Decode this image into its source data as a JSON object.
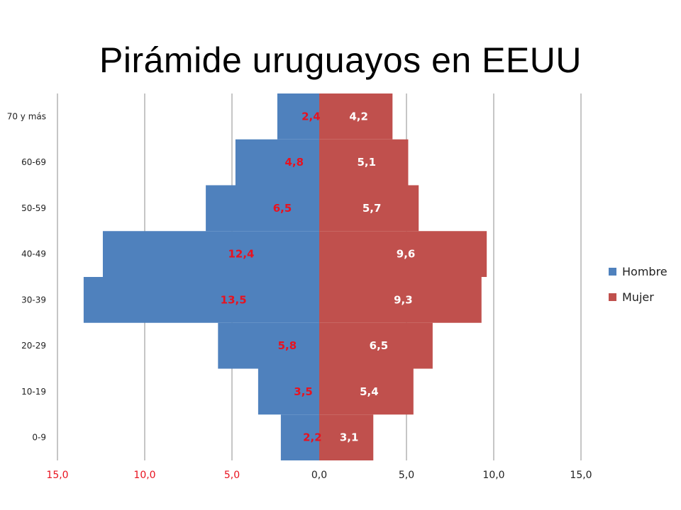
{
  "title": "Pirámide uruguayos en EEUU",
  "colors": {
    "hombre": "#4f81bd",
    "mujer": "#c0504d",
    "hombre_label": "#e8121f",
    "mujer_label": "#ffffff",
    "x_tick_left": "#e8121f",
    "x_tick_right": "#222222",
    "grid": "#8c8c8c"
  },
  "chart_data": {
    "type": "bar",
    "orientation": "horizontal-pyramid",
    "title": "Pirámide uruguayos en EEUU",
    "categories": [
      "0-9",
      "10-19",
      "20-29",
      "30-39",
      "40-49",
      "50-59",
      "60-69",
      "70 y más"
    ],
    "series": [
      {
        "name": "Hombre",
        "values": [
          2.2,
          3.5,
          5.8,
          13.5,
          12.4,
          6.5,
          4.8,
          2.4
        ],
        "labels": [
          "2,2",
          "3,5",
          "5,8",
          "13,5",
          "12,4",
          "6,5",
          "4,8",
          "2,4"
        ]
      },
      {
        "name": "Mujer",
        "values": [
          3.1,
          5.4,
          6.5,
          9.3,
          9.6,
          5.7,
          5.1,
          4.2
        ],
        "labels": [
          "3,1",
          "5,4",
          "6,5",
          "9,3",
          "9,6",
          "5,7",
          "5,1",
          "4,2"
        ]
      }
    ],
    "x_ticks": [
      -15,
      -10,
      -5,
      0,
      5,
      10,
      15
    ],
    "x_tick_labels": [
      "15,0",
      "10,0",
      "5,0",
      "0,0",
      "5,0",
      "10,0",
      "15,0"
    ],
    "xlim": [
      -15,
      15
    ],
    "grid": "vertical",
    "legend": "right"
  }
}
